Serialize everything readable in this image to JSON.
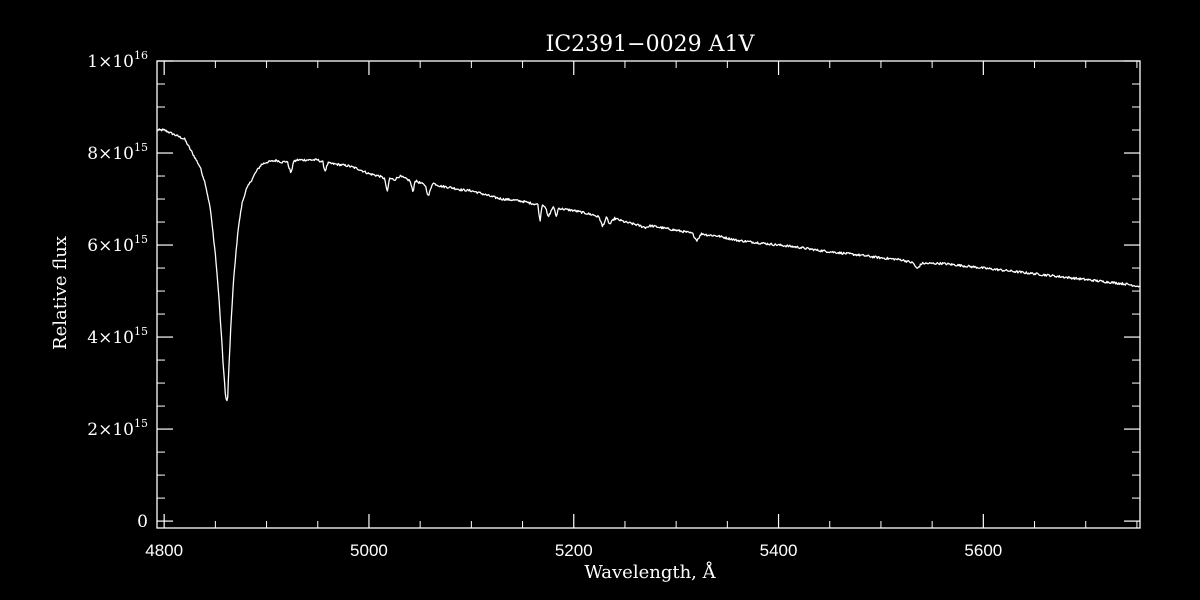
{
  "chart_data": {
    "type": "line",
    "title": "IC2391−0029  A1V",
    "xlabel": "Wavelength, Å",
    "ylabel": "Relative flux",
    "xlim": [
      4793,
      5753
    ],
    "ylim": [
      -150000000000000.0,
      1e+16
    ],
    "x_ticks": [
      {
        "value": 4800,
        "label": "4800"
      },
      {
        "value": 5000,
        "label": "5000"
      },
      {
        "value": 5200,
        "label": "5200"
      },
      {
        "value": 5400,
        "label": "5400"
      },
      {
        "value": 5600,
        "label": "5600"
      }
    ],
    "y_ticks": [
      {
        "value": 0,
        "mantissa": "0",
        "exponent": ""
      },
      {
        "value": 2000000000000000.0,
        "mantissa": "2×10",
        "exponent": "15"
      },
      {
        "value": 4000000000000000.0,
        "mantissa": "4×10",
        "exponent": "15"
      },
      {
        "value": 6000000000000000.0,
        "mantissa": "6×10",
        "exponent": "15"
      },
      {
        "value": 8000000000000000.0,
        "mantissa": "8×10",
        "exponent": "15"
      },
      {
        "value": 1e+16,
        "mantissa": "1×10",
        "exponent": "16"
      }
    ],
    "x_minor_step": 50,
    "y_minor_step": 500000000000000.0,
    "grid": false,
    "colors": {
      "background": "#000000",
      "foreground": "#ffffff"
    },
    "series": [
      {
        "x": [
          4793,
          4800,
          4810,
          4820,
          4825,
          4830,
          4835,
          4840,
          4845,
          4850,
          4853,
          4856,
          4858,
          4860,
          4861,
          4862,
          4863,
          4865,
          4868,
          4872,
          4876,
          4880,
          4885,
          4890,
          4895,
          4900,
          4905,
          4910,
          4915,
          4920,
          4924,
          4926,
          4930,
          4940,
          4950,
          4955,
          4957,
          4960,
          4970,
          4980,
          4990,
          5000,
          5010,
          5015,
          5018,
          5020,
          5025,
          5030,
          5040,
          5043,
          5045,
          5050,
          5055,
          5058,
          5062,
          5070,
          5080,
          5090,
          5100,
          5110,
          5120,
          5130,
          5140,
          5150,
          5160,
          5165,
          5167,
          5169,
          5172,
          5175,
          5180,
          5183,
          5185,
          5190,
          5200,
          5210,
          5220,
          5225,
          5228,
          5232,
          5235,
          5240,
          5250,
          5260,
          5270,
          5275,
          5280,
          5290,
          5300,
          5310,
          5316,
          5320,
          5325,
          5330,
          5340,
          5350,
          5360,
          5380,
          5400,
          5420,
          5440,
          5460,
          5480,
          5500,
          5520,
          5530,
          5532,
          5535,
          5540,
          5560,
          5580,
          5600,
          5620,
          5640,
          5660,
          5680,
          5700,
          5720,
          5740,
          5753
        ],
        "y": [
          8500000000000000.0,
          8500000000000000.0,
          8400000000000000.0,
          8300000000000000.0,
          8100000000000000.0,
          7900000000000000.0,
          7700000000000000.0,
          7350000000000000.0,
          6800000000000000.0,
          5800000000000000.0,
          5000000000000000.0,
          4000000000000000.0,
          3300000000000000.0,
          2700000000000000.0,
          2580000000000000.0,
          2700000000000000.0,
          3200000000000000.0,
          4200000000000000.0,
          5300000000000000.0,
          6300000000000000.0,
          6900000000000000.0,
          7200000000000000.0,
          7400000000000000.0,
          7600000000000000.0,
          7750000000000000.0,
          7800000000000000.0,
          7820000000000000.0,
          7840000000000000.0,
          7800000000000000.0,
          7820000000000000.0,
          7550000000000000.0,
          7800000000000000.0,
          7850000000000000.0,
          7850000000000000.0,
          7850000000000000.0,
          7800000000000000.0,
          7600000000000000.0,
          7780000000000000.0,
          7750000000000000.0,
          7720000000000000.0,
          7650000000000000.0,
          7550000000000000.0,
          7500000000000000.0,
          7450000000000000.0,
          7150000000000000.0,
          7450000000000000.0,
          7420000000000000.0,
          7500000000000000.0,
          7400000000000000.0,
          7150000000000000.0,
          7400000000000000.0,
          7350000000000000.0,
          7300000000000000.0,
          7050000000000000.0,
          7350000000000000.0,
          7280000000000000.0,
          7250000000000000.0,
          7200000000000000.0,
          7180000000000000.0,
          7120000000000000.0,
          7050000000000000.0,
          7000000000000000.0,
          6980000000000000.0,
          6950000000000000.0,
          6900000000000000.0,
          6880000000000000.0,
          6500000000000000.0,
          6880000000000000.0,
          6850000000000000.0,
          6600000000000000.0,
          6840000000000000.0,
          6620000000000000.0,
          6800000000000000.0,
          6780000000000000.0,
          6750000000000000.0,
          6700000000000000.0,
          6650000000000000.0,
          6600000000000000.0,
          6400000000000000.0,
          6600000000000000.0,
          6450000000000000.0,
          6580000000000000.0,
          6500000000000000.0,
          6450000000000000.0,
          6380000000000000.0,
          6420000000000000.0,
          6400000000000000.0,
          6360000000000000.0,
          6320000000000000.0,
          6280000000000000.0,
          6250000000000000.0,
          6100000000000000.0,
          6250000000000000.0,
          6220000000000000.0,
          6200000000000000.0,
          6150000000000000.0,
          6100000000000000.0,
          6050000000000000.0,
          6000000000000000.0,
          5950000000000000.0,
          5880000000000000.0,
          5830000000000000.0,
          5780000000000000.0,
          5720000000000000.0,
          5680000000000000.0,
          5620000000000000.0,
          5600000000000000.0,
          5480000000000000.0,
          5600000000000000.0,
          5600000000000000.0,
          5550000000000000.0,
          5500000000000000.0,
          5450000000000000.0,
          5400000000000000.0,
          5350000000000000.0,
          5300000000000000.0,
          5250000000000000.0,
          5200000000000000.0,
          5150000000000000.0,
          5100000000000000.0
        ]
      }
    ]
  }
}
